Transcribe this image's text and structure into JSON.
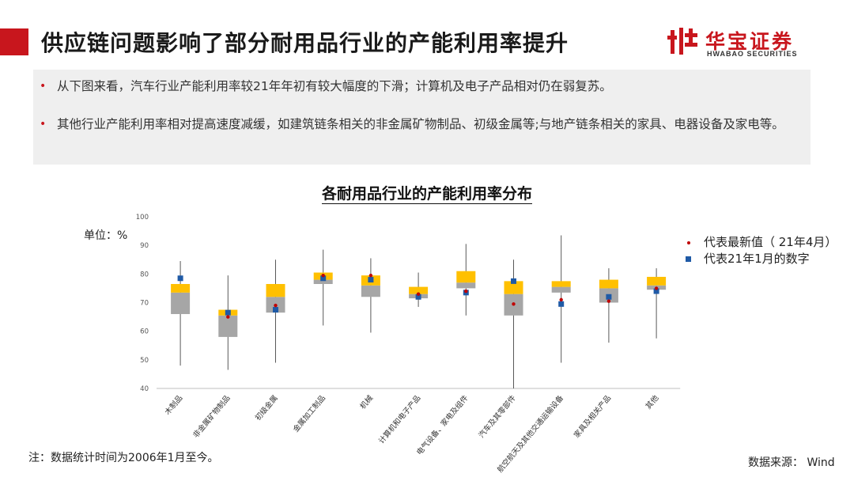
{
  "header": {
    "title": "供应链问题影响了部分耐用品行业的产能利用率提升",
    "logo_cn": "华宝证券",
    "logo_en": "HWABAO SECURITIES"
  },
  "summary": {
    "bullet1": "从下图来看，汽车行业产能利用率较21年年初有较大幅度的下滑；计算机及电子产品相对仍在弱复苏。",
    "bullet2": "其他行业产能利用率相对提高速度减缓，如建筑链条相关的非金属矿物制品、初级金属等;与地产链条相关的家具、电器设备及家电等。"
  },
  "unit_label": "单位：%",
  "legend": {
    "latest": "代表最新值（ 21年4月）",
    "jan": "代表21年1月的数字"
  },
  "footnote": "注：数据统计时间为2006年1月至今。",
  "source": "数据来源： Wind",
  "colors": {
    "accent": "#c8161d",
    "box_lower": "#a6a6a6",
    "box_upper": "#ffc000",
    "latest_marker": "#c00000",
    "jan_marker": "#1f5aa6"
  },
  "chart_data": {
    "type": "box",
    "title": "各耐用品行业的产能利用率分布",
    "ylim": [
      40,
      100
    ],
    "yticks": [
      40,
      50,
      60,
      70,
      80,
      90,
      100
    ],
    "grid": false,
    "legend_position": "right",
    "categories": [
      "木制品",
      "非金属矿物制品",
      "初级金属",
      "金属加工制品",
      "机械",
      "计算机和电子产品",
      "电气设备、家电及组件",
      "汽车及其零部件",
      "航空航天及其他交通运输设备",
      "家具及相关产品",
      "其他"
    ],
    "series": [
      {
        "name": "min",
        "values": [
          48,
          46.5,
          49,
          62,
          59.5,
          68.5,
          65.5,
          40,
          49,
          56,
          57.5
        ]
      },
      {
        "name": "q1",
        "values": [
          66,
          58,
          66.5,
          76.5,
          72,
          71.5,
          75,
          65.5,
          73.5,
          70,
          74.5
        ]
      },
      {
        "name": "median",
        "values": [
          73.5,
          65.5,
          72,
          78,
          76,
          73,
          77,
          73,
          75.5,
          75,
          76
        ]
      },
      {
        "name": "q3",
        "values": [
          76.5,
          67.5,
          76.5,
          80.5,
          79.5,
          75.5,
          81,
          77.5,
          77.5,
          78,
          79
        ]
      },
      {
        "name": "max",
        "values": [
          84.5,
          79.5,
          85,
          88.5,
          85.5,
          80.5,
          90.5,
          85,
          93.5,
          82,
          82
        ]
      },
      {
        "name": "代表最新值（ 21年4月）",
        "values": [
          null,
          65,
          69,
          79.5,
          79.5,
          73,
          74,
          69.5,
          71,
          70.5,
          75
        ]
      },
      {
        "name": "代表21年1月的数字",
        "values": [
          78.5,
          66.5,
          67.5,
          78.5,
          78,
          72,
          73.5,
          77.5,
          69.5,
          72,
          74
        ]
      }
    ]
  }
}
